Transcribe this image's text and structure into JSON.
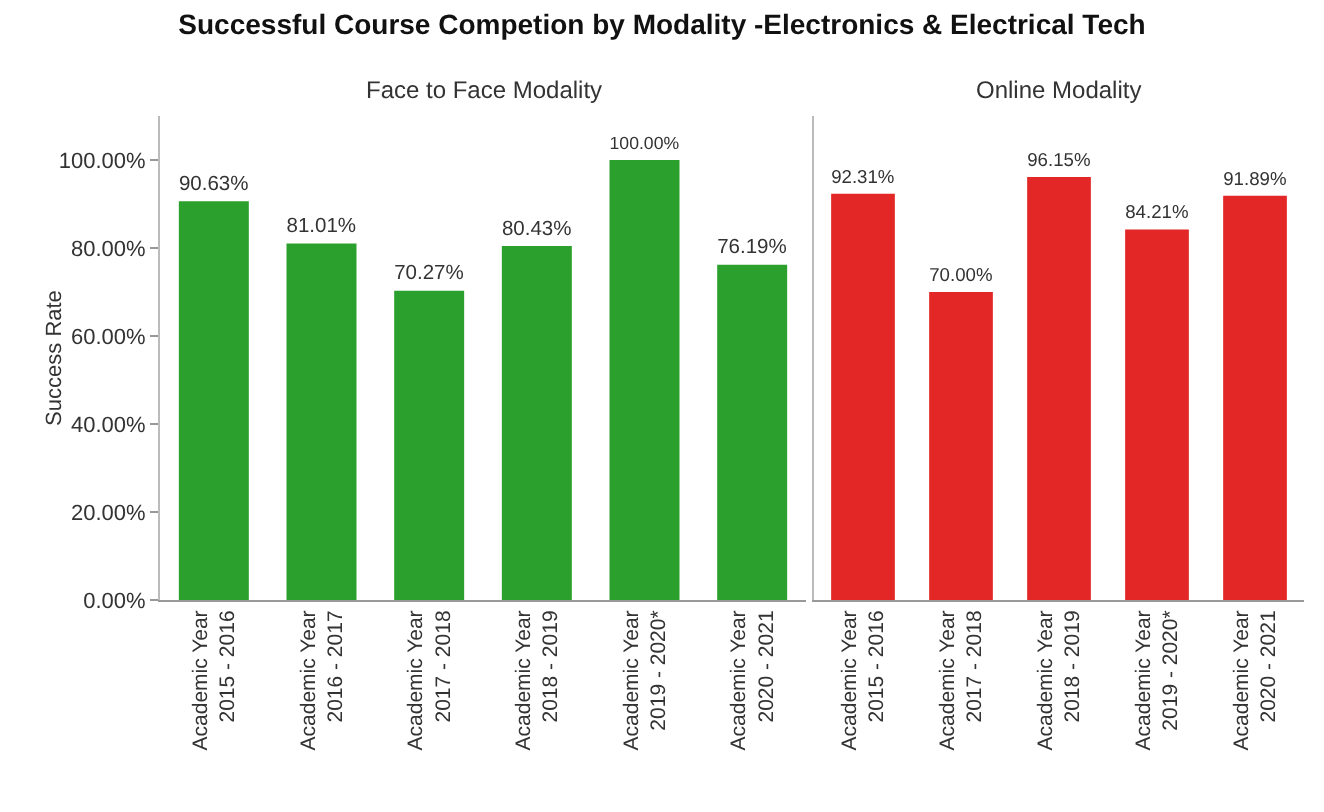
{
  "chart_data": [
    {
      "type": "bar",
      "title": "Successful Course Competion by Modality -Electronics & Electrical Tech",
      "subtitle": "Face to Face Modality",
      "ylabel": "Success Rate",
      "categories": [
        "Academic Year\n2015 - 2016",
        "Academic Year\n2016 - 2017",
        "Academic Year\n2017 - 2018",
        "Academic Year\n2018 - 2019",
        "Academic Year\n2019 - 2020*",
        "Academic Year\n2020 - 2021"
      ],
      "values": [
        90.63,
        81.01,
        70.27,
        80.43,
        100,
        76.19
      ],
      "value_labels": [
        "90.63%",
        "81.01%",
        "70.27%",
        "80.43%",
        "100.00%",
        "76.19%"
      ],
      "color": "#2ca02c",
      "ylim": [
        0,
        110
      ],
      "yticks": [
        {
          "value": 0,
          "label": "0.00%"
        },
        {
          "value": 20,
          "label": "20.00%"
        },
        {
          "value": 40,
          "label": "40.00%"
        },
        {
          "value": 60,
          "label": "60.00%"
        },
        {
          "value": 80,
          "label": "80.00%"
        },
        {
          "value": 100,
          "label": "100.00%"
        }
      ]
    },
    {
      "type": "bar",
      "subtitle": "Online Modality",
      "categories": [
        "Academic Year\n2015 - 2016",
        "Academic Year\n2017 - 2018",
        "Academic Year\n2018 - 2019",
        "Academic Year\n2019 - 2020*",
        "Academic Year\n2020 - 2021"
      ],
      "values": [
        92.31,
        70,
        96.15,
        84.21,
        91.89
      ],
      "value_labels": [
        "92.31%",
        "70.00%",
        "96.15%",
        "84.21%",
        "91.89%"
      ],
      "color": "#e32626",
      "ylim": [
        0,
        110
      ],
      "tick_labels": "x"
    }
  ]
}
